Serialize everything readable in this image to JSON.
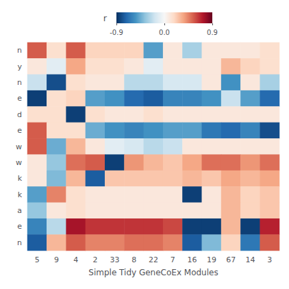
{
  "chart_data": {
    "type": "heatmap",
    "xlabel": "Simple Tidy GeneCoEx Modules",
    "categories": [
      "5",
      "9",
      "4",
      "2",
      "33",
      "8",
      "22",
      "7",
      "16",
      "19",
      "67",
      "14",
      "3"
    ],
    "y_categories": [
      "n",
      "y",
      "n",
      "e",
      "d",
      "e",
      "w",
      "w",
      "k",
      "k",
      "a",
      "e",
      "n"
    ],
    "matrix": [
      [
        0.55,
        0.15,
        0.55,
        0.2,
        0.2,
        0.2,
        -0.5,
        0.1,
        -0.3,
        0.1,
        0.1,
        0.1,
        0.15
      ],
      [
        0.1,
        -0.1,
        0.35,
        0.15,
        0.15,
        0.1,
        -0.1,
        0.1,
        0.1,
        0.1,
        0.3,
        0.2,
        0.15
      ],
      [
        -0.2,
        -0.8,
        0.15,
        0.1,
        0.1,
        -0.25,
        -0.25,
        -0.15,
        -0.15,
        0.1,
        -0.55,
        0.1,
        -0.3
      ],
      [
        -0.85,
        0.15,
        0.2,
        -0.5,
        -0.55,
        -0.7,
        -0.75,
        -0.6,
        -0.6,
        -0.55,
        -0.2,
        -0.5,
        -0.7
      ],
      [
        0.15,
        0.15,
        -0.85,
        0.15,
        0.1,
        0.1,
        0.15,
        0.1,
        0.1,
        0.1,
        0.1,
        0.1,
        0.1
      ],
      [
        0.55,
        0.15,
        0.15,
        -0.45,
        -0.55,
        -0.6,
        -0.55,
        -0.5,
        -0.5,
        -0.65,
        -0.7,
        -0.6,
        -0.8
      ],
      [
        0.55,
        -0.45,
        0.3,
        0.1,
        -0.1,
        -0.15,
        -0.25,
        -0.2,
        0.1,
        0.1,
        0.1,
        0.1,
        0.1
      ],
      [
        0.1,
        -0.35,
        0.5,
        0.55,
        -0.85,
        0.4,
        0.3,
        0.25,
        0.35,
        0.5,
        0.5,
        0.4,
        0.5
      ],
      [
        0.1,
        -0.4,
        0.3,
        -0.75,
        0.25,
        0.25,
        0.25,
        0.25,
        0.3,
        0.25,
        0.35,
        0.3,
        0.35
      ],
      [
        -0.5,
        0.45,
        0.15,
        0.1,
        0.1,
        0.1,
        0.1,
        0.1,
        -0.85,
        0.1,
        0.3,
        0.2,
        0.25
      ],
      [
        -0.35,
        0.1,
        0.15,
        0.1,
        0.1,
        0.1,
        0.1,
        0.1,
        0.1,
        0.1,
        0.3,
        0.2,
        0.25
      ],
      [
        -0.6,
        -0.25,
        0.75,
        0.65,
        0.65,
        0.65,
        0.65,
        0.6,
        -0.85,
        -0.85,
        0.3,
        -0.85,
        0.7
      ],
      [
        -0.75,
        0.3,
        0.55,
        0.45,
        0.45,
        0.5,
        0.5,
        0.45,
        -0.75,
        -0.4,
        0.2,
        -0.65,
        0.55
      ]
    ],
    "colorbar_label": "r",
    "colorbar_range": [
      -0.9,
      0.9
    ],
    "colorbar_ticks": [
      -0.9,
      {
        "value": 0,
        "label": "0.0"
      },
      0.9
    ],
    "colorbar_colors": [
      "#053061",
      "#2166ac",
      "#4393c3",
      "#92c5de",
      "#d1e5f0",
      "#f7f7f7",
      "#fddbc7",
      "#f4a582",
      "#d6604d",
      "#b2182b",
      "#67001f"
    ]
  }
}
